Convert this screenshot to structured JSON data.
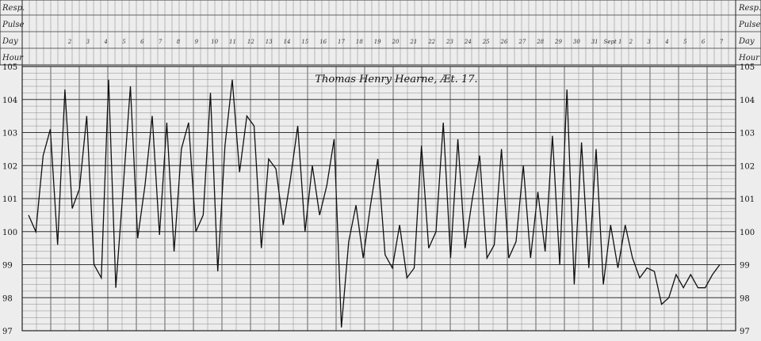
{
  "chart_data": {
    "type": "line",
    "title": "Thomas Henry Hearne, Æt. 17.",
    "ylabel": "",
    "xlabel": "",
    "ylim": [
      97,
      105
    ],
    "y_ticks": [
      "105",
      "104",
      "103",
      "102",
      "101",
      "100",
      "99",
      "98",
      "97"
    ],
    "row_labels": [
      "Resp.",
      "Pulse",
      "Day",
      "Hour"
    ],
    "day_labels": [
      "2",
      "3",
      "4",
      "5",
      "6",
      "7",
      "8",
      "9",
      "10",
      "11",
      "12",
      "13",
      "14",
      "15",
      "16",
      "17",
      "18",
      "19",
      "20",
      "21",
      "22",
      "23",
      "24",
      "25",
      "26",
      "27",
      "28",
      "29",
      "30",
      "31",
      "Sept 1",
      "2",
      "3",
      "4",
      "5",
      "6",
      "7"
    ],
    "grid": true,
    "series": [
      {
        "values": [
          100.5,
          100.0,
          102.3,
          103.1,
          99.6,
          104.3,
          100.7,
          101.3,
          103.5,
          99.0,
          98.6,
          104.6,
          98.3,
          101.3,
          104.4,
          99.8,
          101.4,
          103.5,
          99.9,
          103.3,
          99.4,
          102.5,
          103.3,
          100.0,
          100.5,
          104.2,
          98.8,
          102.6,
          104.6,
          101.8,
          103.5,
          103.2,
          99.5,
          102.2,
          101.9,
          100.2,
          101.6,
          103.2,
          100.0,
          102.0,
          100.5,
          101.4,
          102.8,
          97.1,
          99.7,
          100.8,
          99.2,
          100.8,
          102.2,
          99.3,
          98.9,
          100.2,
          98.6,
          98.9,
          102.6,
          99.5,
          100.0,
          103.3,
          99.2,
          102.8,
          99.5,
          101.0,
          102.3,
          99.2,
          99.6,
          102.5,
          99.2,
          99.7,
          102.0,
          99.2,
          101.2,
          99.4,
          102.9,
          99.0,
          104.3,
          98.4,
          102.7,
          98.9,
          102.5,
          98.4,
          100.2,
          98.9,
          100.2,
          99.2,
          98.6,
          98.9,
          98.8,
          97.8,
          98.0,
          98.7,
          98.3,
          98.7,
          98.3,
          98.3,
          98.7,
          99.0
        ]
      }
    ]
  }
}
